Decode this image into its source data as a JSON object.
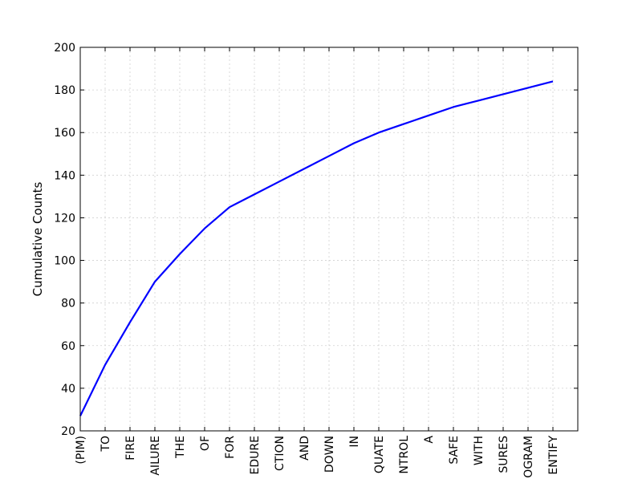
{
  "chart_data": {
    "type": "line",
    "title": "",
    "xlabel": "",
    "ylabel": "Cumulative Counts",
    "ylim": [
      20,
      200
    ],
    "yticks": [
      20,
      40,
      60,
      80,
      100,
      120,
      140,
      160,
      180,
      200
    ],
    "grid": true,
    "line_color": "#0000ff",
    "categories": [
      "(PIM)",
      "TO",
      "FIRE",
      "AILURE",
      "THE",
      "OF",
      "FOR",
      "EDURE",
      "CTION",
      "AND",
      "DOWN",
      "IN",
      "QUATE",
      "NTROL",
      "A",
      "SAFE",
      "WITH",
      "SURES",
      "OGRAM",
      "ENTIFY"
    ],
    "values": [
      27,
      51,
      71,
      90,
      103,
      115,
      125,
      131,
      137,
      143,
      149,
      155,
      160,
      164,
      168,
      172,
      175,
      178,
      181,
      184
    ]
  }
}
